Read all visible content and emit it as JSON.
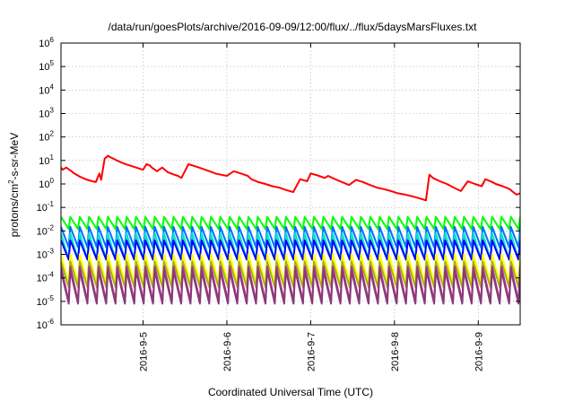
{
  "chart_data": {
    "type": "line",
    "title": "/data/run/goesPlots/archive/2016-09-09/12:00/flux/../flux/5daysMarsFluxes.txt",
    "xlabel": "Coordinated Universal Time (UTC)",
    "ylabel_base": "protons/cm",
    "ylabel_sup": "2",
    "ylabel_rest": "-s-sr-MeV",
    "y_scale": "log",
    "ylim": [
      1e-06,
      1000000.0
    ],
    "y_ticks": [
      {
        "base": "10",
        "exp": "-6",
        "value": 1e-06
      },
      {
        "base": "10",
        "exp": "-5",
        "value": 1e-05
      },
      {
        "base": "10",
        "exp": "-4",
        "value": 0.0001
      },
      {
        "base": "10",
        "exp": "-3",
        "value": 0.001
      },
      {
        "base": "10",
        "exp": "-2",
        "value": 0.01
      },
      {
        "base": "10",
        "exp": "-1",
        "value": 0.1
      },
      {
        "base": "10",
        "exp": "0",
        "value": 1
      },
      {
        "base": "10",
        "exp": "1",
        "value": 10
      },
      {
        "base": "10",
        "exp": "2",
        "value": 100
      },
      {
        "base": "10",
        "exp": "3",
        "value": 1000
      },
      {
        "base": "10",
        "exp": "4",
        "value": 10000
      },
      {
        "base": "10",
        "exp": "5",
        "value": 100000
      },
      {
        "base": "10",
        "exp": "6",
        "value": 1000000
      }
    ],
    "xlim": [
      "2016-09-04 00:30",
      "2016-09-09 12:00"
    ],
    "x_ticks": [
      {
        "label": "2016-9-5",
        "value": "2016-09-05 00:00"
      },
      {
        "label": "2016-9-6",
        "value": "2016-09-06 00:00"
      },
      {
        "label": "2016-9-7",
        "value": "2016-09-07 00:00"
      },
      {
        "label": "2016-9-8",
        "value": "2016-09-08 00:00"
      },
      {
        "label": "2016-9-9",
        "value": "2016-09-09 00:00"
      }
    ],
    "grid": true,
    "series": [
      {
        "color": "#ff0000",
        "style": "decay",
        "x": [
          "2016-09-04 00:30",
          "2016-09-04 01:00",
          "2016-09-04 02:00",
          "2016-09-04 03:30",
          "2016-09-04 04:00",
          "2016-09-04 06:00",
          "2016-09-04 08:00",
          "2016-09-04 09:30",
          "2016-09-04 10:30",
          "2016-09-04 11:30",
          "2016-09-04 12:00",
          "2016-09-04 13:00",
          "2016-09-04 14:00",
          "2016-09-04 14:30",
          "2016-09-04 15:30",
          "2016-09-04 16:30",
          "2016-09-04 18:00",
          "2016-09-04 19:00",
          "2016-09-04 22:00",
          "2016-09-05 00:00",
          "2016-09-05 01:00",
          "2016-09-05 02:00",
          "2016-09-05 02:30",
          "2016-09-05 04:00",
          "2016-09-05 05:30",
          "2016-09-05 07:00",
          "2016-09-05 08:30",
          "2016-09-05 10:00",
          "2016-09-05 11:00",
          "2016-09-05 13:00",
          "2016-09-05 16:00",
          "2016-09-05 19:00",
          "2016-09-05 21:00",
          "2016-09-06 00:00",
          "2016-09-06 02:00",
          "2016-09-06 04:00",
          "2016-09-06 06:00",
          "2016-09-06 07:00",
          "2016-09-06 09:00",
          "2016-09-06 11:00",
          "2016-09-06 13:00",
          "2016-09-06 15:00",
          "2016-09-06 17:00",
          "2016-09-06 19:00",
          "2016-09-06 21:00",
          "2016-09-06 23:00",
          "2016-09-07 00:00",
          "2016-09-07 02:00",
          "2016-09-07 04:00",
          "2016-09-07 05:00",
          "2016-09-07 07:00",
          "2016-09-07 09:00",
          "2016-09-07 11:00",
          "2016-09-07 13:00",
          "2016-09-07 15:00",
          "2016-09-07 17:00",
          "2016-09-07 19:00",
          "2016-09-07 21:00",
          "2016-09-07 23:00",
          "2016-09-08 01:00",
          "2016-09-08 03:00",
          "2016-09-08 05:00",
          "2016-09-08 07:00",
          "2016-09-08 09:00",
          "2016-09-08 10:00",
          "2016-09-08 11:00",
          "2016-09-08 13:00",
          "2016-09-08 15:00",
          "2016-09-08 17:00",
          "2016-09-08 19:00",
          "2016-09-08 21:00",
          "2016-09-08 23:00",
          "2016-09-09 01:00",
          "2016-09-09 02:00",
          "2016-09-09 04:00",
          "2016-09-09 05:00",
          "2016-09-09 07:00",
          "2016-09-09 09:00",
          "2016-09-09 10:00",
          "2016-09-09 11:00",
          "2016-09-09 12:00"
        ],
        "values": [
          5,
          4,
          5,
          3.5,
          3,
          2,
          1.5,
          1.3,
          1.2,
          2.8,
          1.5,
          12,
          16,
          14,
          12,
          10,
          8,
          7,
          5,
          4,
          7,
          6,
          5,
          3.5,
          5,
          3.2,
          2.6,
          2.2,
          1.8,
          7,
          5,
          3.5,
          2.7,
          2.2,
          3.5,
          2.8,
          2.2,
          1.6,
          1.2,
          1.0,
          0.8,
          0.7,
          0.55,
          0.45,
          1.6,
          1.3,
          2.8,
          2.3,
          1.8,
          2.2,
          1.6,
          1.2,
          0.9,
          1.5,
          1.2,
          0.9,
          0.7,
          0.6,
          0.5,
          0.4,
          0.35,
          0.3,
          0.25,
          0.2,
          2.5,
          1.8,
          1.3,
          1.0,
          0.7,
          0.5,
          1.3,
          1.0,
          0.8,
          1.6,
          1.2,
          1.0,
          0.8,
          0.6,
          0.45,
          0.35,
          0.4
        ]
      },
      {
        "color": "#00ff00",
        "style": "sawtooth",
        "peak": 0.04,
        "trough": 0.012
      },
      {
        "color": "#0070ff",
        "style": "sawtooth",
        "peak": 0.015,
        "trough": 0.002
      },
      {
        "color": "#00e5c8",
        "style": "sawtooth",
        "peak": 0.008,
        "trough": 0.0006
      },
      {
        "color": "#0000ff",
        "style": "sawtooth",
        "peak": 0.004,
        "trough": 0.0006
      },
      {
        "color": "#ffff00",
        "style": "sawtooth",
        "peak": 0.001,
        "trough": 6e-05
      },
      {
        "color": "#a0b020",
        "style": "sawtooth",
        "peak": 0.0005,
        "trough": 4e-05
      },
      {
        "color": "#b03090",
        "style": "sawtooth",
        "peak": 0.0003,
        "trough": 1e-05
      },
      {
        "color": "#8a3a7a",
        "style": "sawtooth",
        "peak": 0.0002,
        "trough": 8e-06
      }
    ]
  }
}
